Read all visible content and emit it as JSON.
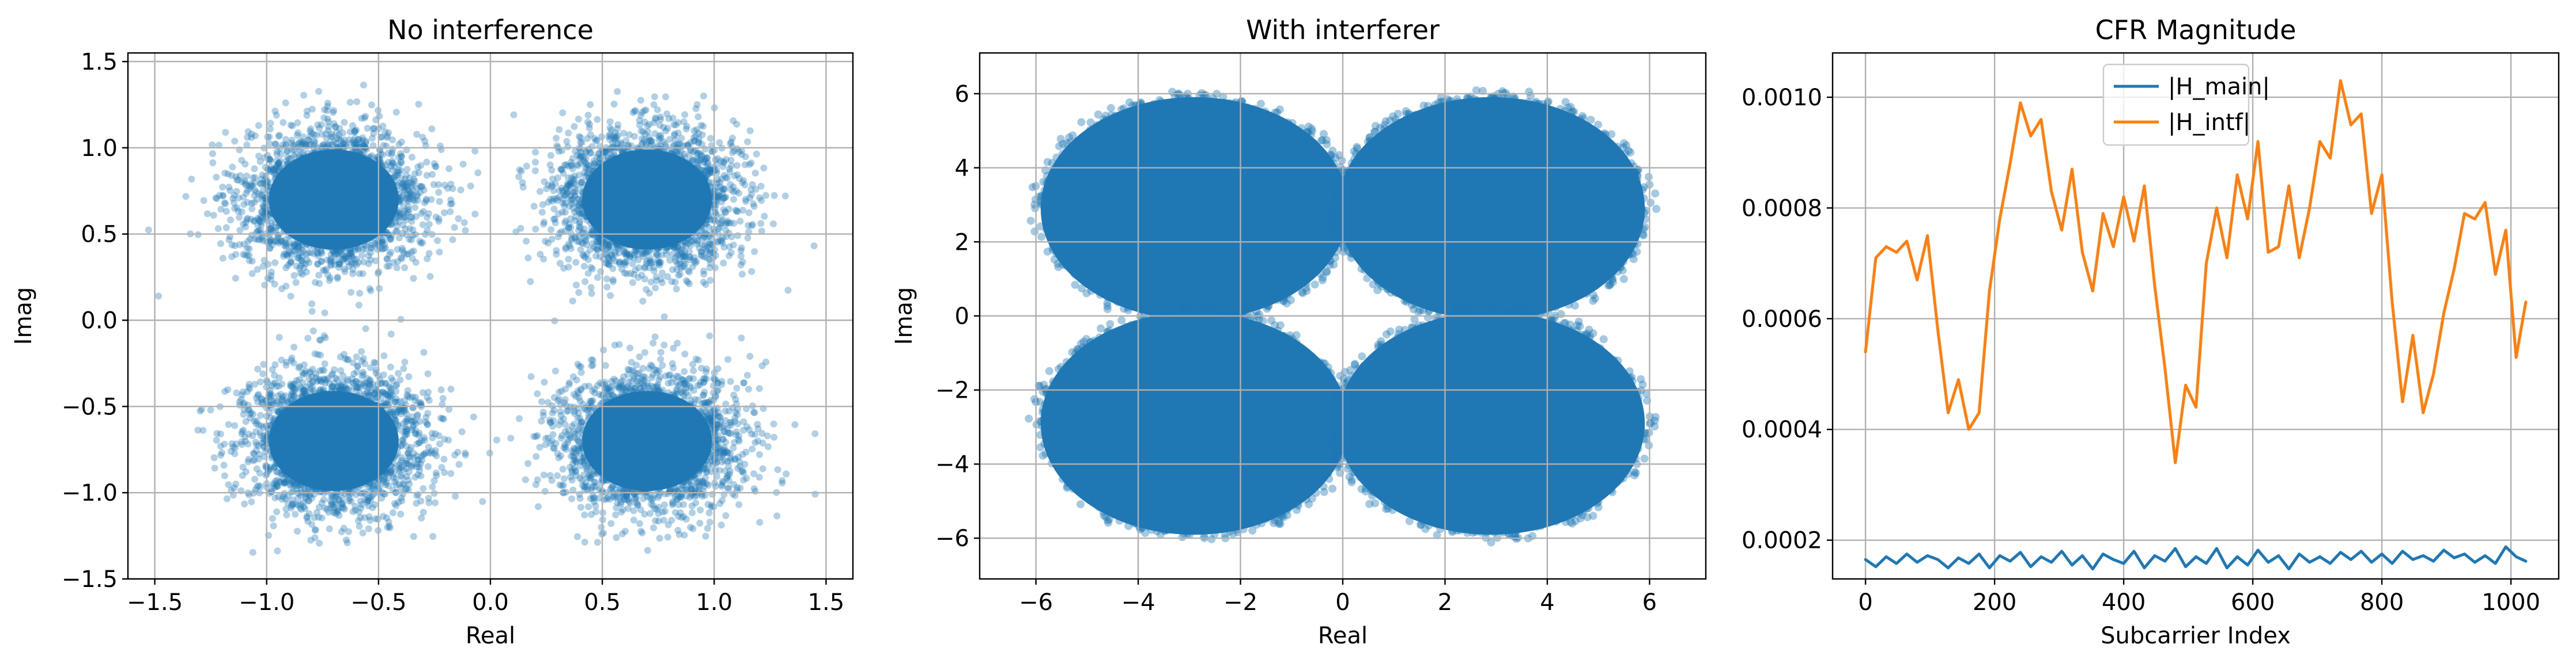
{
  "chart_data": [
    {
      "type": "scatter",
      "title": "No interference",
      "xlabel": "Real",
      "ylabel": "Imag",
      "xlim": [
        -1.62,
        1.62
      ],
      "ylim": [
        -1.5,
        1.55
      ],
      "xticks": [
        -1.5,
        -1.0,
        -0.5,
        0.0,
        0.5,
        1.0,
        1.5
      ],
      "xtick_labels": [
        "−1.5",
        "−1.0",
        "−0.5",
        "0.0",
        "0.5",
        "1.0",
        "1.5"
      ],
      "yticks": [
        -1.5,
        -1.0,
        -0.5,
        0.0,
        0.5,
        1.0,
        1.5
      ],
      "ytick_labels": [
        "−1.5",
        "−1.0",
        "−0.5",
        "0.0",
        "0.5",
        "1.0",
        "1.5"
      ],
      "grid": true,
      "color": "#1f77b4",
      "clusters": [
        {
          "center": [
            -0.7,
            0.7
          ],
          "spread": [
            0.2,
            0.2
          ]
        },
        {
          "center": [
            0.7,
            0.7
          ],
          "spread": [
            0.2,
            0.2
          ]
        },
        {
          "center": [
            -0.7,
            -0.7
          ],
          "spread": [
            0.2,
            0.2
          ]
        },
        {
          "center": [
            0.7,
            -0.7
          ],
          "spread": [
            0.2,
            0.2
          ]
        }
      ]
    },
    {
      "type": "scatter",
      "title": "With interferer",
      "xlabel": "Real",
      "ylabel": "Imag",
      "xlim": [
        -7.1,
        7.1
      ],
      "ylim": [
        -7.1,
        7.1
      ],
      "xticks": [
        -6,
        -4,
        -2,
        0,
        2,
        4,
        6
      ],
      "xtick_labels": [
        "−6",
        "−4",
        "−2",
        "0",
        "2",
        "4",
        "6"
      ],
      "yticks": [
        -6,
        -4,
        -2,
        0,
        2,
        4,
        6
      ],
      "ytick_labels": [
        "−6",
        "−4",
        "−2",
        "0",
        "2",
        "4",
        "6"
      ],
      "grid": true,
      "color": "#1f77b4",
      "clusters": [
        {
          "center": [
            -2.9,
            2.9
          ],
          "spread": [
            3.1,
            3.1
          ]
        },
        {
          "center": [
            2.9,
            2.9
          ],
          "spread": [
            3.1,
            3.1
          ]
        },
        {
          "center": [
            -2.9,
            -2.9
          ],
          "spread": [
            3.1,
            3.1
          ]
        },
        {
          "center": [
            2.9,
            -2.9
          ],
          "spread": [
            3.1,
            3.1
          ]
        }
      ]
    },
    {
      "type": "line",
      "title": "CFR Magnitude",
      "xlabel": "Subcarrier Index",
      "ylabel": "",
      "xlim": [
        -51,
        1074
      ],
      "ylim": [
        0.00013,
        0.00108
      ],
      "xticks": [
        0,
        200,
        400,
        600,
        800,
        1000
      ],
      "xtick_labels": [
        "0",
        "200",
        "400",
        "600",
        "800",
        "1000"
      ],
      "yticks": [
        0.0002,
        0.0004,
        0.0006,
        0.0008,
        0.001
      ],
      "ytick_labels": [
        "0.0002",
        "0.0004",
        "0.0006",
        "0.0008",
        "0.0010"
      ],
      "grid": true,
      "legend": "upper center",
      "series": [
        {
          "name": "|H_main|",
          "color": "#1f77b4",
          "x": [
            0,
            16,
            32,
            48,
            64,
            80,
            96,
            112,
            128,
            144,
            160,
            176,
            192,
            208,
            224,
            240,
            256,
            272,
            288,
            304,
            320,
            336,
            352,
            368,
            384,
            400,
            416,
            432,
            448,
            464,
            480,
            496,
            512,
            528,
            544,
            560,
            576,
            592,
            608,
            624,
            640,
            656,
            672,
            688,
            704,
            720,
            736,
            752,
            768,
            784,
            800,
            816,
            832,
            848,
            864,
            880,
            896,
            912,
            928,
            944,
            960,
            976,
            992,
            1008,
            1023
          ],
          "values": [
            0.000165,
            0.000152,
            0.00017,
            0.000158,
            0.000175,
            0.00016,
            0.000172,
            0.000165,
            0.00015,
            0.000168,
            0.000158,
            0.000175,
            0.00015,
            0.000172,
            0.000162,
            0.000178,
            0.000152,
            0.00017,
            0.00016,
            0.00018,
            0.000155,
            0.000172,
            0.000148,
            0.000175,
            0.000165,
            0.000158,
            0.00018,
            0.00015,
            0.000172,
            0.000162,
            0.000185,
            0.000152,
            0.00017,
            0.000158,
            0.000185,
            0.00015,
            0.00017,
            0.000155,
            0.000182,
            0.00016,
            0.000172,
            0.000148,
            0.000175,
            0.00016,
            0.00017,
            0.000158,
            0.000178,
            0.000165,
            0.00018,
            0.00016,
            0.000175,
            0.000158,
            0.00018,
            0.000165,
            0.000172,
            0.000162,
            0.000182,
            0.000168,
            0.000175,
            0.00016,
            0.000172,
            0.000158,
            0.000188,
            0.00017,
            0.000162
          ]
        },
        {
          "name": "|H_intf|",
          "color": "#ff7f0e",
          "x": [
            0,
            16,
            32,
            48,
            64,
            80,
            96,
            112,
            128,
            144,
            160,
            176,
            192,
            208,
            224,
            240,
            256,
            272,
            288,
            304,
            320,
            336,
            352,
            368,
            384,
            400,
            416,
            432,
            448,
            464,
            480,
            496,
            512,
            528,
            544,
            560,
            576,
            592,
            608,
            624,
            640,
            656,
            672,
            688,
            704,
            720,
            736,
            752,
            768,
            784,
            800,
            816,
            832,
            848,
            864,
            880,
            896,
            912,
            928,
            944,
            960,
            976,
            992,
            1008,
            1023
          ],
          "values": [
            0.00054,
            0.00071,
            0.00073,
            0.00072,
            0.00074,
            0.00067,
            0.00075,
            0.00058,
            0.00043,
            0.00049,
            0.0004,
            0.00043,
            0.00065,
            0.00078,
            0.00088,
            0.00099,
            0.00093,
            0.00096,
            0.00083,
            0.00076,
            0.00087,
            0.00072,
            0.00065,
            0.00079,
            0.00073,
            0.00082,
            0.00074,
            0.00084,
            0.00066,
            0.00051,
            0.00034,
            0.00048,
            0.00044,
            0.0007,
            0.0008,
            0.00071,
            0.00086,
            0.00078,
            0.00092,
            0.00072,
            0.00073,
            0.00084,
            0.00071,
            0.0008,
            0.00092,
            0.00089,
            0.00103,
            0.00095,
            0.00097,
            0.00079,
            0.00086,
            0.00063,
            0.00045,
            0.00057,
            0.00043,
            0.0005,
            0.00061,
            0.00069,
            0.00079,
            0.00078,
            0.00081,
            0.00068,
            0.00076,
            0.00053,
            0.00063
          ]
        }
      ]
    }
  ]
}
